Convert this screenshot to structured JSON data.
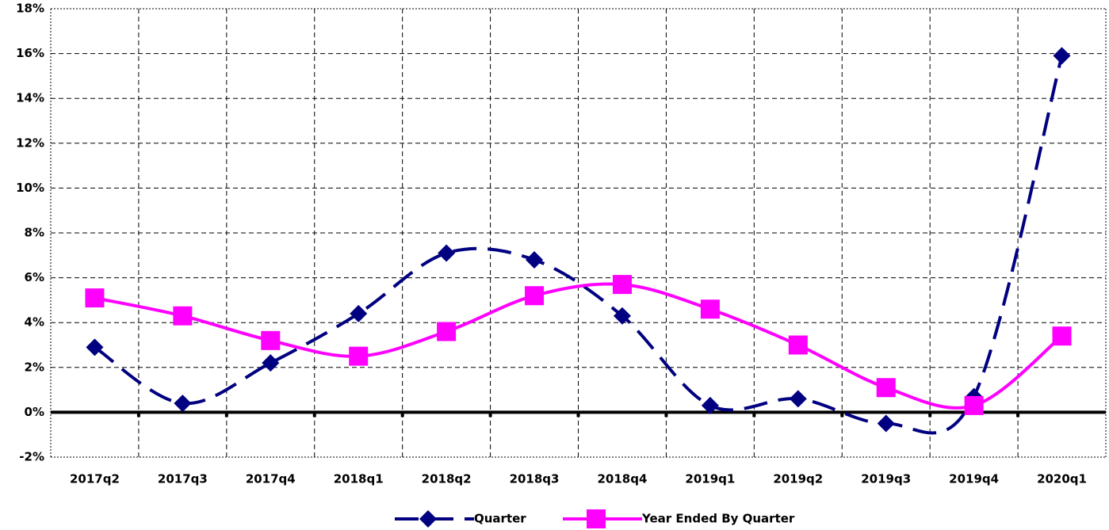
{
  "chart_data": {
    "type": "line",
    "categories": [
      "2017q2",
      "2017q3",
      "2017q4",
      "2018q1",
      "2018q2",
      "2018q3",
      "2018q4",
      "2019q1",
      "2019q2",
      "2019q3",
      "2019q4",
      "2020q1"
    ],
    "series": [
      {
        "name": "Quarter",
        "color": "#000080",
        "marker": "diamond",
        "dash": true,
        "values": [
          2.9,
          0.4,
          2.2,
          4.4,
          7.1,
          6.8,
          4.3,
          0.3,
          0.6,
          -0.5,
          0.7,
          15.9
        ]
      },
      {
        "name": "Year Ended By Quarter",
        "color": "#ff00ff",
        "marker": "square",
        "dash": false,
        "values": [
          5.1,
          4.3,
          3.2,
          2.5,
          3.6,
          5.2,
          5.7,
          4.6,
          3.0,
          1.1,
          0.3,
          3.4
        ]
      }
    ],
    "ylim": [
      -2,
      18
    ],
    "yticks": [
      {
        "value": -2,
        "label": "-2%"
      },
      {
        "value": 0,
        "label": "0%"
      },
      {
        "value": 2,
        "label": "2%"
      },
      {
        "value": 4,
        "label": "4%"
      },
      {
        "value": 6,
        "label": "6%"
      },
      {
        "value": 8,
        "label": "8%"
      },
      {
        "value": 10,
        "label": "10%"
      },
      {
        "value": 12,
        "label": "12%"
      },
      {
        "value": 14,
        "label": "14%"
      },
      {
        "value": 16,
        "label": "16%"
      },
      {
        "value": 18,
        "label": "18%"
      }
    ],
    "grid": true
  }
}
